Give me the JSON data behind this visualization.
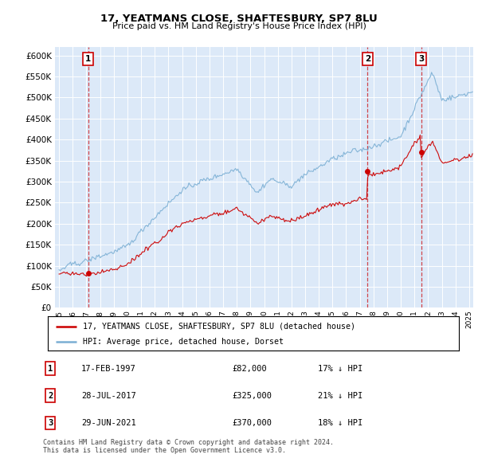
{
  "title1": "17, YEATMANS CLOSE, SHAFTESBURY, SP7 8LU",
  "title2": "Price paid vs. HM Land Registry's House Price Index (HPI)",
  "ylim": [
    0,
    620000
  ],
  "yticks": [
    0,
    50000,
    100000,
    150000,
    200000,
    250000,
    300000,
    350000,
    400000,
    450000,
    500000,
    550000,
    600000
  ],
  "xlim_start": 1994.7,
  "xlim_end": 2025.3,
  "plot_bg": "#dce9f8",
  "sale_dates": [
    1997.12,
    2017.57,
    2021.49
  ],
  "sale_prices": [
    82000,
    325000,
    370000
  ],
  "sale_labels": [
    "1",
    "2",
    "3"
  ],
  "legend_line1": "17, YEATMANS CLOSE, SHAFTESBURY, SP7 8LU (detached house)",
  "legend_line2": "HPI: Average price, detached house, Dorset",
  "table_rows": [
    [
      "1",
      "17-FEB-1997",
      "£82,000",
      "17% ↓ HPI"
    ],
    [
      "2",
      "28-JUL-2017",
      "£325,000",
      "21% ↓ HPI"
    ],
    [
      "3",
      "29-JUN-2021",
      "£370,000",
      "18% ↓ HPI"
    ]
  ],
  "footer": "Contains HM Land Registry data © Crown copyright and database right 2024.\nThis data is licensed under the Open Government Licence v3.0.",
  "red_color": "#cc0000",
  "blue_color": "#7bafd4",
  "dashed_color": "#cc0000"
}
